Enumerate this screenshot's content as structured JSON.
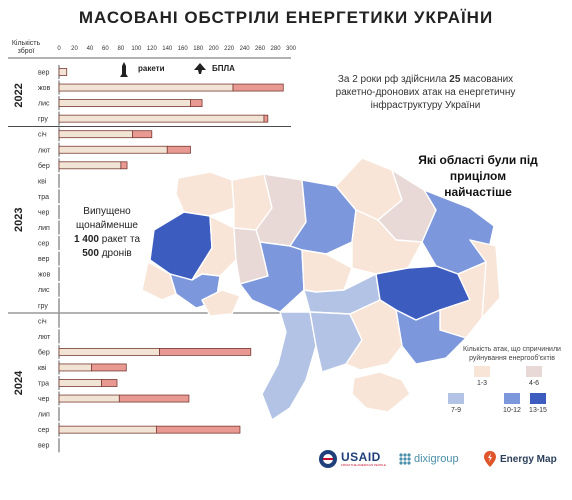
{
  "title": "МАСОВАНІ ОБСТРІЛИ ЕНЕРГЕТИКИ УКРАЇНИ",
  "axis_title": "Кількість зброї",
  "legend": {
    "missiles": "ракети",
    "drones": "БПЛА"
  },
  "colors": {
    "missiles": "#f2e4d4",
    "drones": "#e89a92",
    "bar_stroke": "#7a3a33",
    "axis": "#333333",
    "map_1_3": "#f8e5d8",
    "map_4_6": "#e8d8d6",
    "map_7_9": "#b3c3e6",
    "map_10_12": "#7d97dc",
    "map_13_15": "#3d5cc0"
  },
  "summary": {
    "prefix": "За 2 роки рф здійснила ",
    "count": "25",
    "suffix": " масованих ракетно-дронових атак на енергетичну інфраструктуру України"
  },
  "question": "Які області були під прицілом найчастіше",
  "launched": {
    "line1": "Випущено щонайменше",
    "missiles": "1 400",
    "middle": " ракет та",
    "drones": "500",
    "suffix": " дронів"
  },
  "map_legend": {
    "title": "Кількість атак, що спричинили руйнування енергооб'єктів",
    "classes": [
      "1-3",
      "4-6",
      "7-9",
      "10-12",
      "13-15"
    ]
  },
  "logos": {
    "usaid": "USAID",
    "usaid_sub": "FROM THE AMERICAN PEOPLE",
    "dixi": "dixigroup",
    "energy_map": "Energy Map"
  },
  "chart_data": {
    "type": "bar",
    "orientation": "horizontal",
    "stacked": true,
    "xlabel": "Кількість зброї",
    "xlim": [
      0,
      300
    ],
    "xticks": [
      0,
      20,
      40,
      60,
      80,
      100,
      120,
      140,
      160,
      180,
      200,
      220,
      240,
      260,
      280,
      300
    ],
    "groups": [
      {
        "year": "2022",
        "categories": [
          "вер",
          "жов",
          "лис",
          "гру"
        ]
      },
      {
        "year": "2023",
        "categories": [
          "січ",
          "лют",
          "бер",
          "кві",
          "тра",
          "чер",
          "лип",
          "сер",
          "вер",
          "жов",
          "лис",
          "гру"
        ]
      },
      {
        "year": "2024",
        "categories": [
          "січ",
          "лют",
          "бер",
          "кві",
          "тра",
          "чер",
          "лип",
          "сер",
          "вер"
        ]
      }
    ],
    "series": [
      {
        "name": "ракети",
        "values": [
          [
            10,
            225,
            170,
            265
          ],
          [
            95,
            140,
            80,
            0,
            0,
            0,
            0,
            0,
            0,
            0,
            0,
            0
          ],
          [
            0,
            0,
            130,
            42,
            55,
            78,
            0,
            126,
            0
          ]
        ]
      },
      {
        "name": "БПЛА",
        "values": [
          [
            0,
            65,
            15,
            5
          ],
          [
            25,
            30,
            8,
            0,
            0,
            0,
            0,
            0,
            0,
            0,
            0,
            0
          ],
          [
            0,
            0,
            118,
            45,
            20,
            90,
            0,
            108,
            0
          ]
        ]
      }
    ]
  }
}
